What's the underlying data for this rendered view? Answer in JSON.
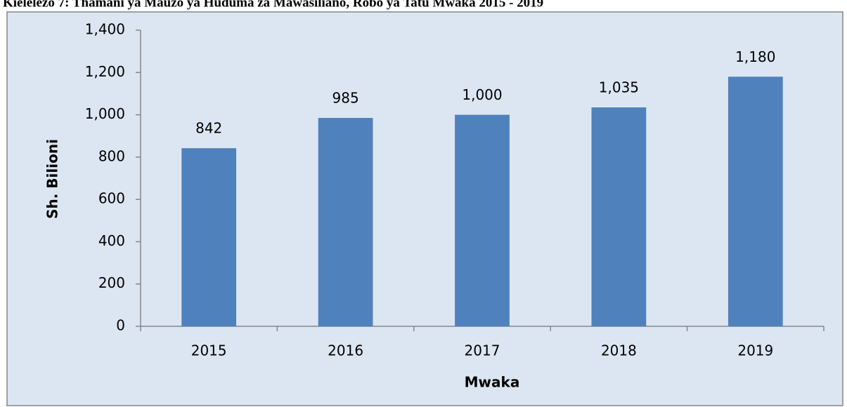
{
  "chart_data": {
    "type": "bar",
    "title": "Kielelezo 7: Thamani ya Mauzo ya Huduma za Mawasiliano, Robo ya Tatu Mwaka 2015 - 2019",
    "x_label": "Mwaka",
    "y_label": "Sh. Bilioni",
    "categories": [
      "2015",
      "2016",
      "2017",
      "2018",
      "2019"
    ],
    "values": [
      842,
      985,
      1000,
      1035,
      1180
    ],
    "value_labels": [
      "842",
      "985",
      "1,000",
      "1,035",
      "1,180"
    ],
    "color": "#4f81bd",
    "ylim": [
      0,
      1400
    ],
    "yticks": [
      0,
      200,
      400,
      600,
      800,
      {
        "value": 1000,
        "label": "1,000"
      },
      {
        "value": 1200,
        "label": "1,200"
      },
      {
        "value": 1400,
        "label": "1,400"
      }
    ],
    "grid": false
  }
}
